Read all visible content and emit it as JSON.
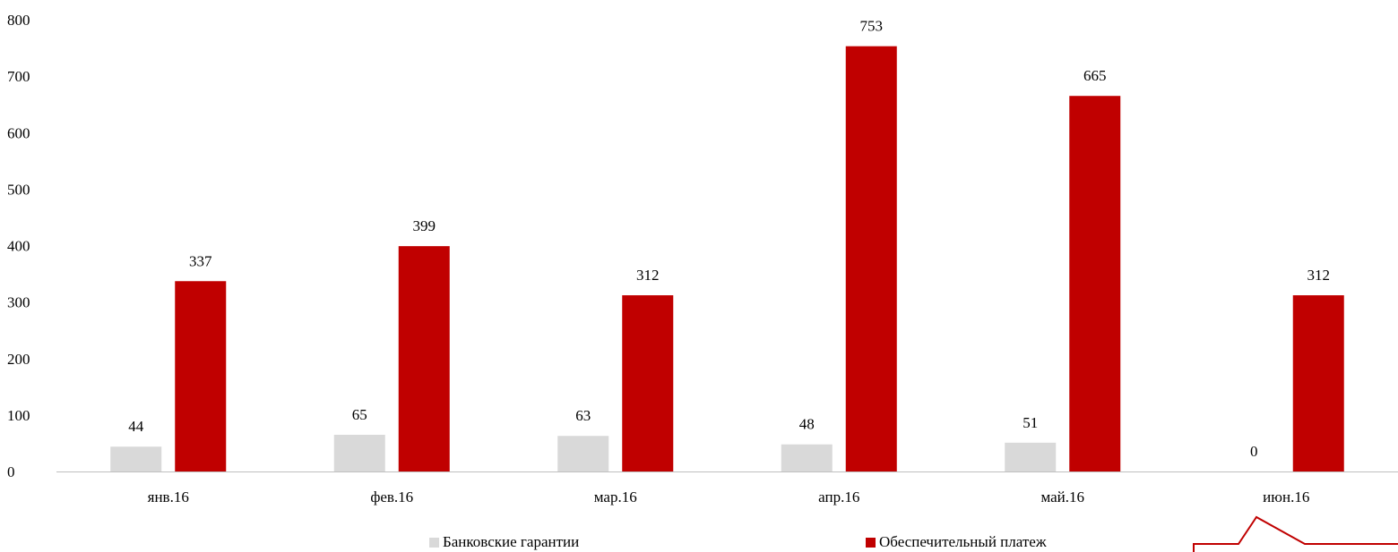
{
  "colors": {
    "series1": "#d9d9d9",
    "series2": "#c00000",
    "axis": "#bfbfbf",
    "decor": "#c00000"
  },
  "chart_data": {
    "type": "bar",
    "categories": [
      "янв.16",
      "фев.16",
      "мар.16",
      "апр.16",
      "май.16",
      "июн.16"
    ],
    "series": [
      {
        "name": "Банковские гарантии",
        "values": [
          44,
          65,
          63,
          48,
          51,
          0
        ]
      },
      {
        "name": "Обеспечительный платеж",
        "values": [
          337,
          399,
          312,
          753,
          665,
          312
        ]
      }
    ],
    "yticks": [
      "0",
      "100",
      "200",
      "300",
      "400",
      "500",
      "600",
      "700",
      "800"
    ],
    "ylim": [
      0,
      800
    ],
    "grid": false,
    "legend_position": "bottom"
  },
  "legend": {
    "items": [
      "Банковские гарантии",
      "Обеспечительный платеж"
    ]
  }
}
